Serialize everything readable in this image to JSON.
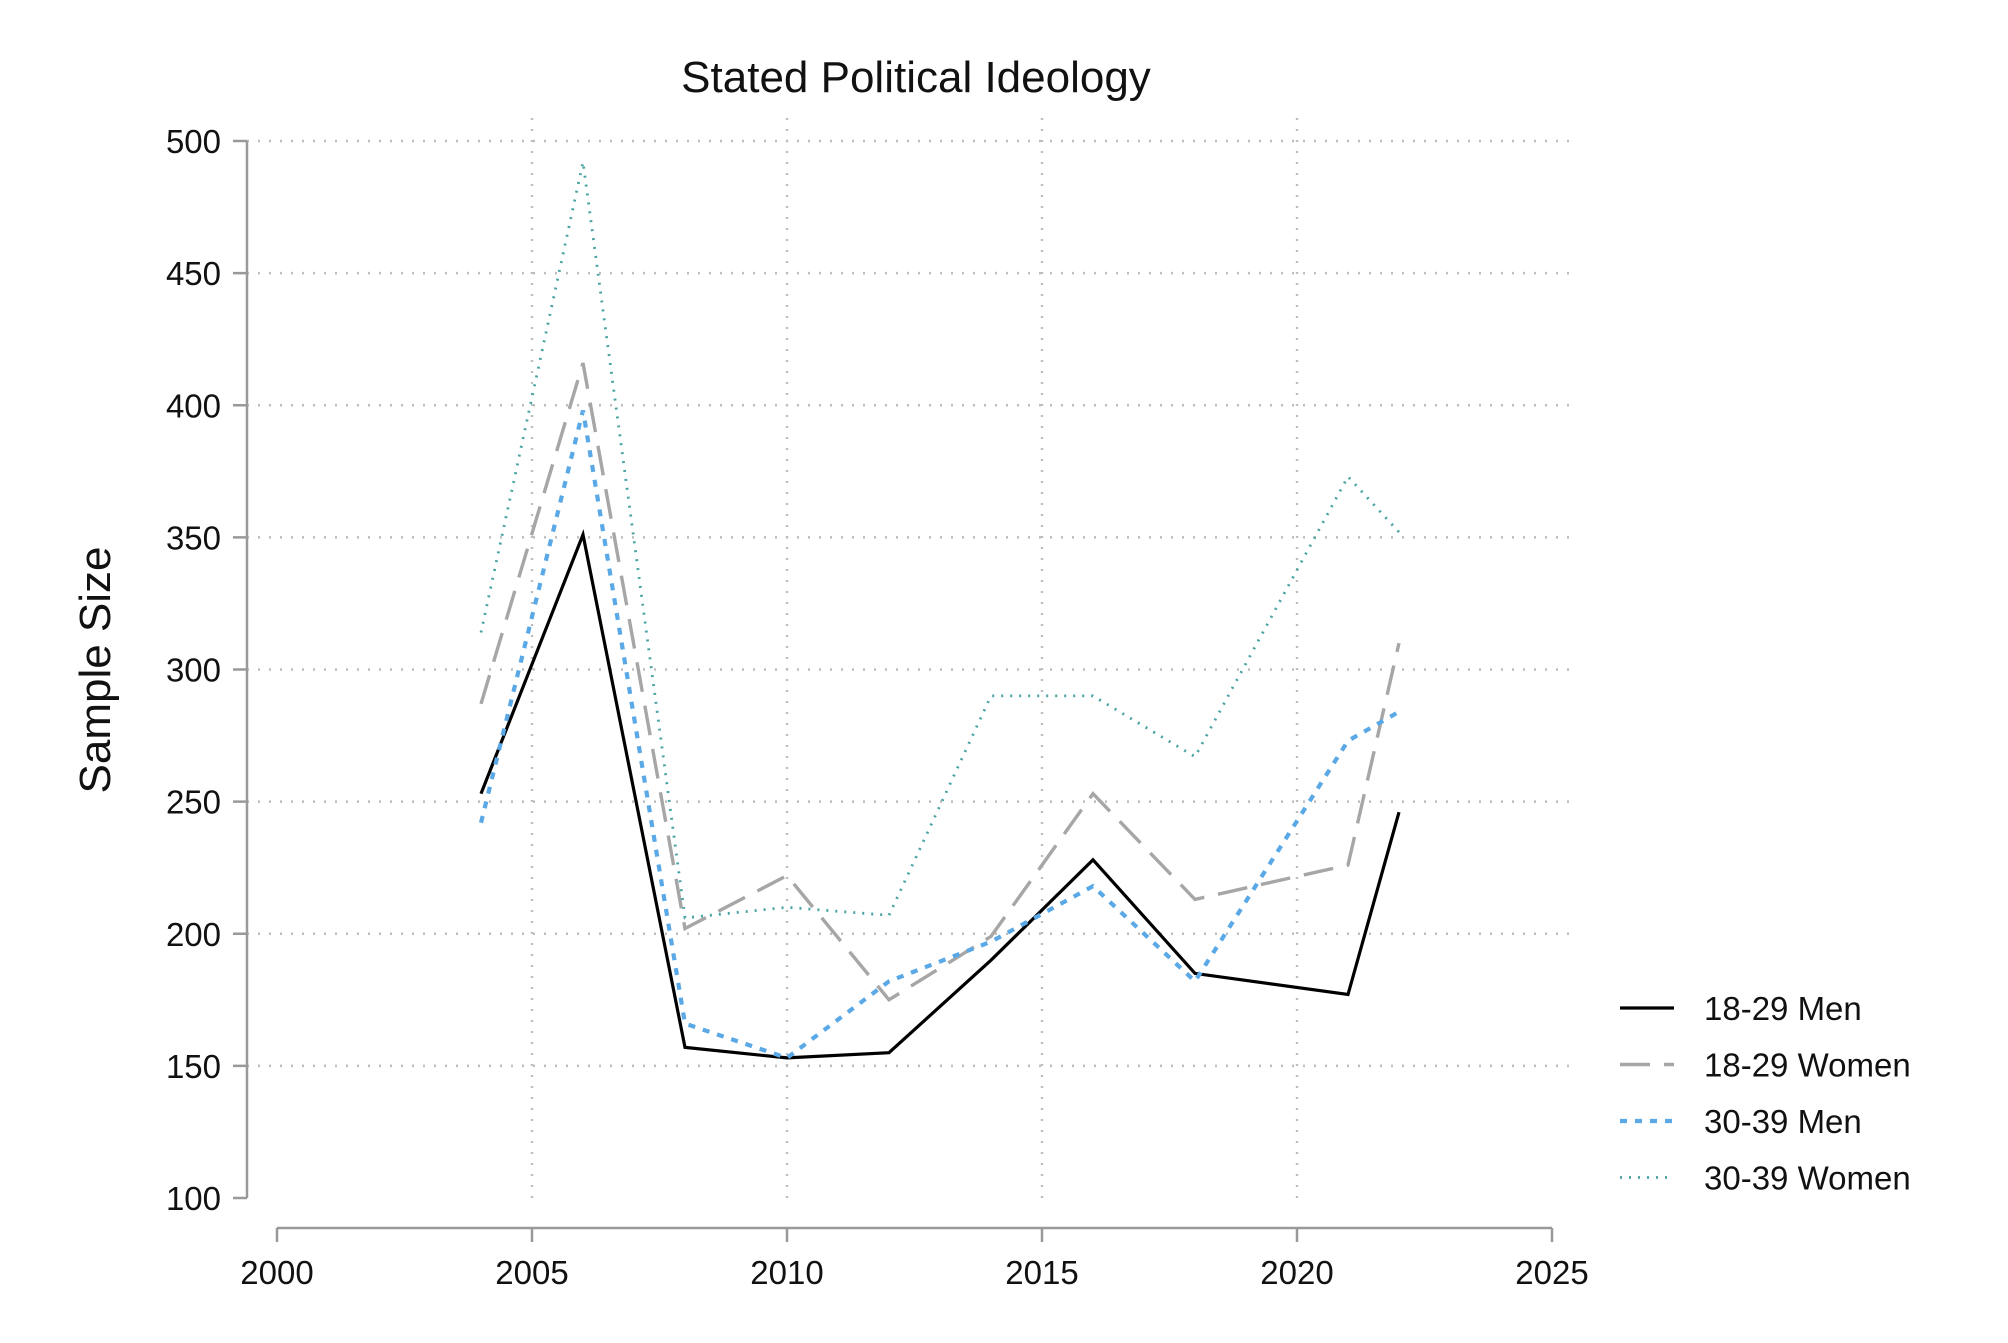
{
  "chart_data": {
    "type": "line",
    "title": "Stated Political Ideology",
    "xlabel": "",
    "ylabel": "Sample Size",
    "xlim": [
      2000,
      2025
    ],
    "ylim": [
      100,
      500
    ],
    "xticks": [
      2000,
      2005,
      2010,
      2015,
      2020,
      2025
    ],
    "yticks": [
      100,
      150,
      200,
      250,
      300,
      350,
      400,
      450,
      500
    ],
    "grid": true,
    "legend_position": "right",
    "series": [
      {
        "name": "18-29 Men",
        "color": "#000000",
        "style": "solid",
        "x": [
          2004,
          2006,
          2008,
          2010,
          2012,
          2014,
          2016,
          2018,
          2021,
          2022
        ],
        "values": [
          253,
          351,
          157,
          153,
          155,
          190,
          228,
          185,
          177,
          246
        ]
      },
      {
        "name": "18-29 Women",
        "color": "#a6a6a6",
        "style": "dashed",
        "x": [
          2004,
          2006,
          2008,
          2010,
          2012,
          2014,
          2016,
          2018,
          2021,
          2022
        ],
        "values": [
          287,
          416,
          202,
          222,
          175,
          199,
          253,
          213,
          226,
          310
        ]
      },
      {
        "name": "30-39 Men",
        "color": "#5aa9e6",
        "style": "short-dash",
        "x": [
          2004,
          2006,
          2008,
          2010,
          2012,
          2014,
          2016,
          2018,
          2021,
          2022
        ],
        "values": [
          242,
          398,
          166,
          153,
          182,
          197,
          218,
          182,
          273,
          284
        ]
      },
      {
        "name": "30-39 Women",
        "color": "#4aa3a3",
        "style": "dotted",
        "x": [
          2004,
          2006,
          2008,
          2010,
          2012,
          2014,
          2016,
          2018,
          2021,
          2022
        ],
        "values": [
          314,
          492,
          206,
          210,
          207,
          290,
          290,
          267,
          373,
          352
        ]
      }
    ]
  }
}
